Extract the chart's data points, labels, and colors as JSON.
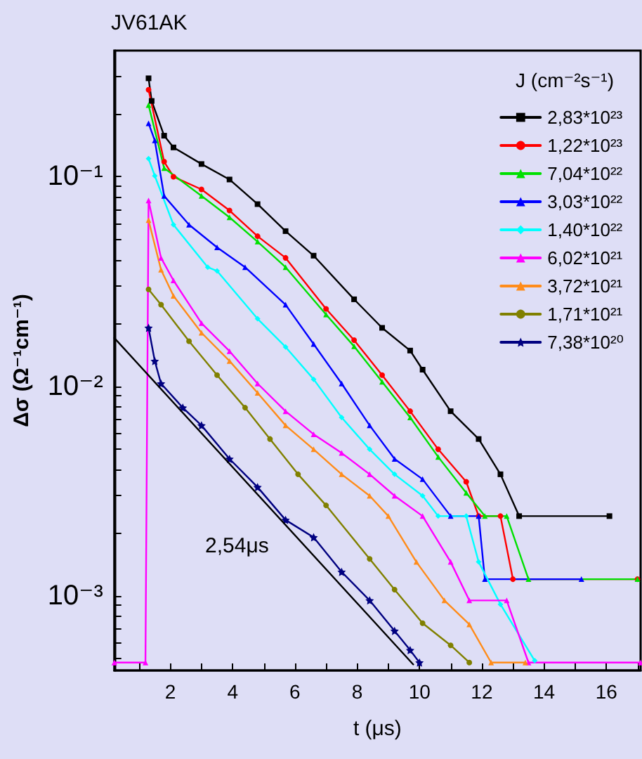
{
  "chart_data": {
    "type": "line",
    "title": "JV61AK",
    "xlabel": "t (μs)",
    "ylabel": "Δσ (Ω⁻¹cm⁻¹)",
    "legend_title": "J (cm⁻²s⁻¹)",
    "log": "y",
    "grid": false,
    "legend": "top right",
    "line_style": "solid",
    "xlim": [
      0.2,
      17.1
    ],
    "xticks": [
      {
        "value": 1,
        "label": null
      },
      2,
      {
        "value": 3,
        "label": null
      },
      4,
      {
        "value": 5,
        "label": null
      },
      6,
      {
        "value": 7,
        "label": null
      },
      8,
      {
        "value": 9,
        "label": null
      },
      10,
      {
        "value": 11,
        "label": null
      },
      12,
      {
        "value": 13,
        "label": null
      },
      14,
      {
        "value": 15,
        "label": null
      },
      16,
      {
        "value": 17,
        "label": null
      }
    ],
    "ylim": [
      0.00044,
      0.4
    ],
    "yticks": [
      {
        "value": 0.0005,
        "label": null
      },
      {
        "value": 0.0006,
        "label": null
      },
      {
        "value": 0.0007,
        "label": null
      },
      {
        "value": 0.0008,
        "label": null
      },
      {
        "value": 0.0009,
        "label": null
      },
      {
        "value": 0.001,
        "label": "10⁻³"
      },
      {
        "value": 0.002,
        "label": null
      },
      {
        "value": 0.003,
        "label": null
      },
      {
        "value": 0.004,
        "label": null
      },
      {
        "value": 0.005,
        "label": null
      },
      {
        "value": 0.006,
        "label": null
      },
      {
        "value": 0.007,
        "label": null
      },
      {
        "value": 0.008,
        "label": null
      },
      {
        "value": 0.009,
        "label": null
      },
      {
        "value": 0.01,
        "label": "10⁻²"
      },
      {
        "value": 0.02,
        "label": null
      },
      {
        "value": 0.03,
        "label": null
      },
      {
        "value": 0.04,
        "label": null
      },
      {
        "value": 0.05,
        "label": null
      },
      {
        "value": 0.06,
        "label": null
      },
      {
        "value": 0.07,
        "label": null
      },
      {
        "value": 0.08,
        "label": null
      },
      {
        "value": 0.09,
        "label": null
      },
      {
        "value": 0.1,
        "label": "10⁻¹"
      },
      {
        "value": 0.2,
        "label": null
      },
      {
        "value": 0.3,
        "label": null
      }
    ],
    "annotations": [
      "2,54μs"
    ],
    "series": [
      {
        "name": "2,83*10²³",
        "color": "#000000",
        "marker": "square",
        "x": [
          1.3,
          1.4,
          1.8,
          2.1,
          3.0,
          3.9,
          4.8,
          5.7,
          6.6,
          7.9,
          8.8,
          9.7,
          10.1,
          11.0,
          11.9,
          12.6,
          13.2,
          16.1
        ],
        "values": [
          0.295,
          0.23,
          0.157,
          0.138,
          0.115,
          0.097,
          0.074,
          0.055,
          0.042,
          0.026,
          0.019,
          0.0148,
          0.012,
          0.0076,
          0.0056,
          0.0038,
          0.0024,
          0.0024
        ]
      },
      {
        "name": "1,22*10²³",
        "color": "#ff0000",
        "marker": "circle",
        "x": [
          1.3,
          1.8,
          2.1,
          3.0,
          3.9,
          4.8,
          5.7,
          7.0,
          7.9,
          8.8,
          9.7,
          10.6,
          11.5,
          11.9,
          12.6,
          13.0,
          17.0
        ],
        "values": [
          0.26,
          0.118,
          0.1,
          0.087,
          0.069,
          0.052,
          0.041,
          0.0234,
          0.0166,
          0.0113,
          0.0076,
          0.005,
          0.0035,
          0.0024,
          0.0024,
          0.0012,
          0.0012
        ]
      },
      {
        "name": "7,04*10²²",
        "color": "#00e000",
        "marker": "triangle",
        "x": [
          1.3,
          1.8,
          3.0,
          3.9,
          4.8,
          5.7,
          7.0,
          7.9,
          8.8,
          9.7,
          10.6,
          11.5,
          12.1,
          12.8,
          13.5,
          17.0
        ],
        "values": [
          0.22,
          0.11,
          0.081,
          0.064,
          0.049,
          0.037,
          0.022,
          0.0155,
          0.0105,
          0.0071,
          0.0046,
          0.0031,
          0.0024,
          0.0024,
          0.0012,
          0.0012
        ]
      },
      {
        "name": "3,03*10²²",
        "color": "#0000ff",
        "marker": "triangle",
        "x": [
          1.3,
          1.5,
          1.8,
          2.6,
          3.5,
          4.4,
          5.7,
          6.6,
          7.5,
          8.4,
          9.2,
          10.1,
          11.0,
          11.9,
          12.1,
          15.2
        ],
        "values": [
          0.18,
          0.149,
          0.081,
          0.059,
          0.046,
          0.037,
          0.0245,
          0.0159,
          0.0103,
          0.0065,
          0.0045,
          0.0036,
          0.0024,
          0.0024,
          0.0012,
          0.0012
        ]
      },
      {
        "name": "1,40*10²²",
        "color": "#00ffff",
        "marker": "diamond",
        "x": [
          1.3,
          1.5,
          2.1,
          3.2,
          3.5,
          4.8,
          5.7,
          6.6,
          7.5,
          8.4,
          9.2,
          10.1,
          10.6,
          11.5,
          11.9,
          12.6,
          13.7
        ],
        "values": [
          0.122,
          0.101,
          0.059,
          0.037,
          0.0355,
          0.021,
          0.0154,
          0.0108,
          0.0071,
          0.005,
          0.0038,
          0.003,
          0.0024,
          0.0024,
          0.00145,
          0.00091,
          0.00049
        ]
      },
      {
        "name": "6,02*10²¹",
        "color": "#ff00ff",
        "marker": "triangle",
        "x": [
          0.2,
          1.2,
          1.3,
          1.7,
          2.1,
          3.0,
          3.9,
          4.8,
          5.7,
          6.6,
          7.5,
          8.4,
          9.2,
          10.1,
          11.0,
          11.6,
          12.8,
          13.5,
          17.1
        ],
        "values": [
          0.00048,
          0.00048,
          0.077,
          0.041,
          0.032,
          0.02,
          0.0147,
          0.0103,
          0.0076,
          0.0059,
          0.0048,
          0.0038,
          0.003,
          0.0024,
          0.00145,
          0.00095,
          0.00095,
          0.00048,
          0.00048
        ]
      },
      {
        "name": "3,72*10²¹",
        "color": "#ff8c1a",
        "marker": "triangle",
        "x": [
          1.3,
          1.7,
          2.1,
          3.0,
          3.9,
          4.8,
          5.7,
          6.6,
          7.5,
          8.4,
          9.0,
          9.9,
          10.8,
          11.6,
          12.3,
          13.4
        ],
        "values": [
          0.062,
          0.036,
          0.027,
          0.018,
          0.0132,
          0.0093,
          0.0065,
          0.005,
          0.0038,
          0.003,
          0.0024,
          0.00145,
          0.00095,
          0.00073,
          0.00048,
          0.00048
        ]
      },
      {
        "name": "1,71*10²¹",
        "color": "#808000",
        "marker": "circle",
        "x": [
          1.3,
          1.7,
          2.6,
          3.5,
          4.4,
          5.2,
          6.1,
          7.0,
          8.4,
          9.2,
          10.1,
          11.0,
          11.6
        ],
        "values": [
          0.029,
          0.0245,
          0.0164,
          0.0113,
          0.0079,
          0.0056,
          0.0038,
          0.0027,
          0.0015,
          0.00107,
          0.00074,
          0.00058,
          0.00048
        ]
      },
      {
        "name": "7,38*10²⁰",
        "color": "#000080",
        "marker": "star",
        "x": [
          1.3,
          1.5,
          1.7,
          2.4,
          3.0,
          3.9,
          4.8,
          5.7,
          6.6,
          7.5,
          8.4,
          9.2,
          9.7,
          10.0
        ],
        "values": [
          0.019,
          0.0132,
          0.0103,
          0.0079,
          0.0065,
          0.0045,
          0.0033,
          0.0023,
          0.0019,
          0.0013,
          0.00095,
          0.00068,
          0.00055,
          0.00048
        ]
      },
      {
        "type": "line",
        "color": "#000000",
        "marker": "none",
        "x": [
          0.2,
          9.8
        ],
        "values": [
          0.017,
          0.00047
        ]
      }
    ]
  }
}
